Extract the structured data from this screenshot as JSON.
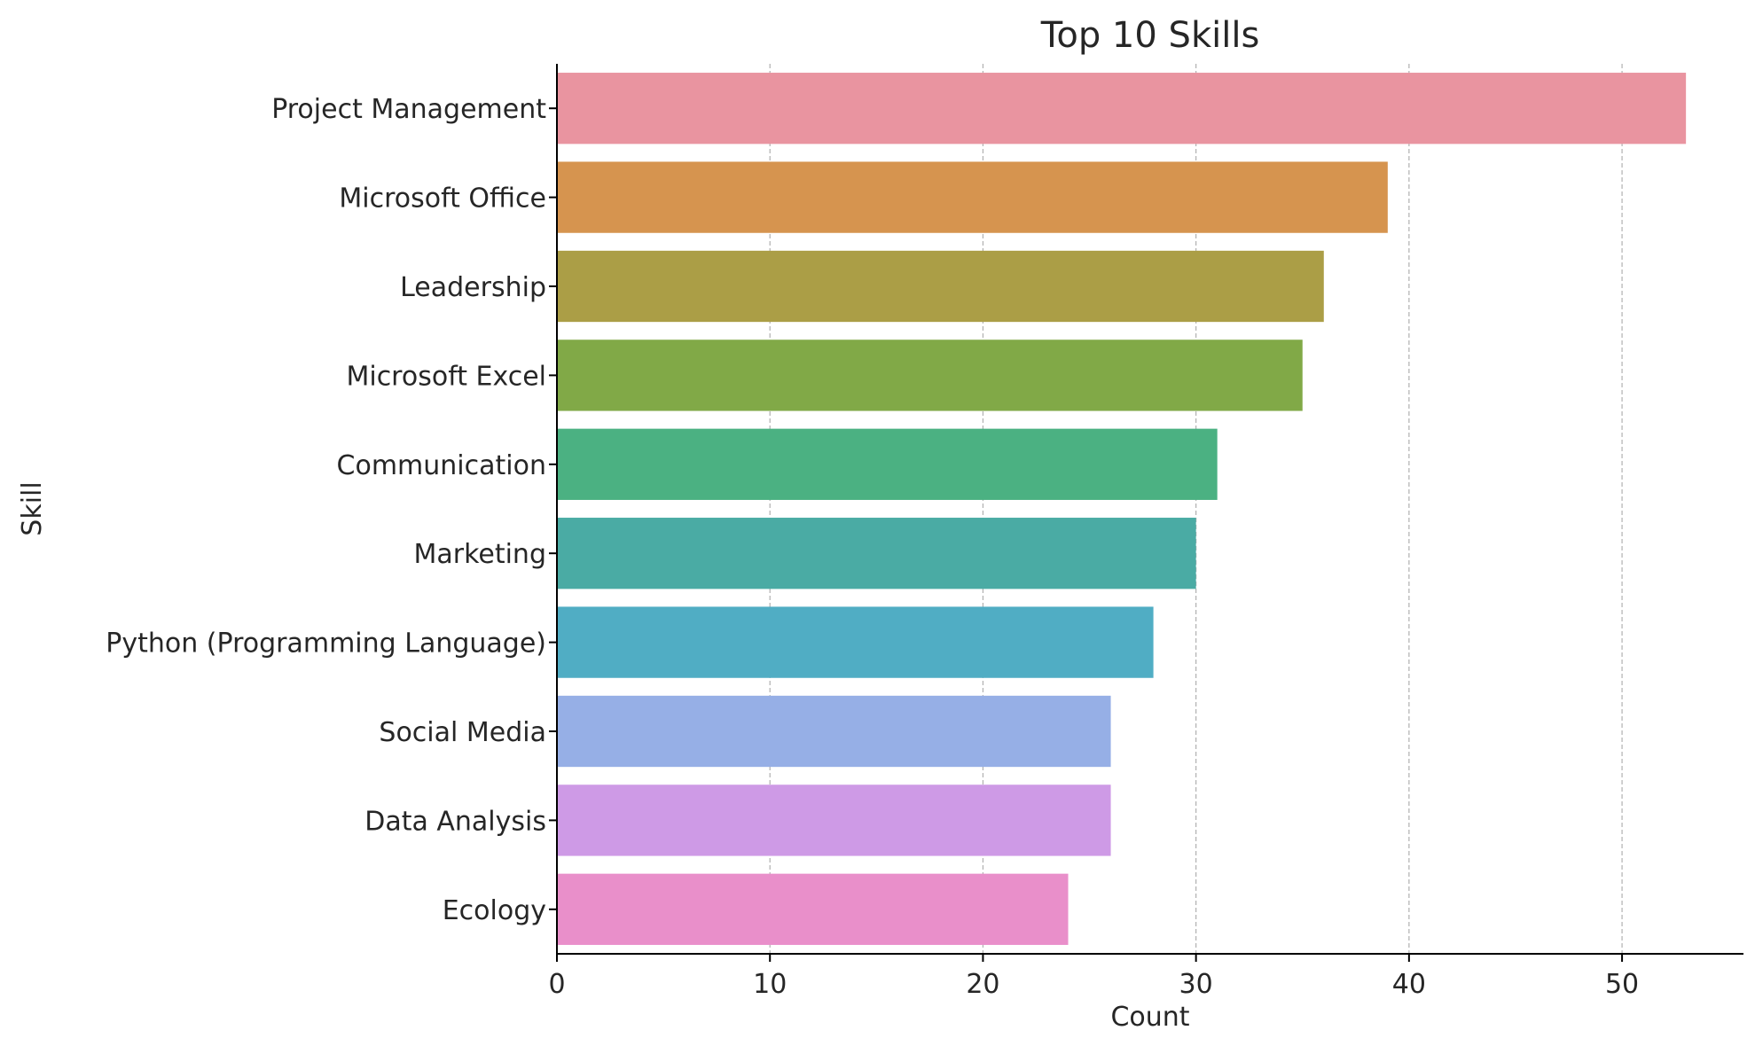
{
  "chart_data": {
    "type": "bar",
    "orientation": "horizontal",
    "title": "Top 10 Skills",
    "xlabel": "Count",
    "ylabel": "Skill",
    "categories": [
      "Project Management",
      "Microsoft Office",
      "Leadership",
      "Microsoft Excel",
      "Communication",
      "Marketing",
      "Python (Programming Language)",
      "Social Media",
      "Data Analysis",
      "Ecology"
    ],
    "values": [
      53,
      39,
      36,
      35,
      31,
      30,
      28,
      26,
      26,
      24
    ],
    "colors": [
      "#e994a0",
      "#d6944f",
      "#ab9e46",
      "#81a947",
      "#4bb182",
      "#4aaba4",
      "#50adc4",
      "#96afe6",
      "#ce9ae6",
      "#e98fca"
    ],
    "xlim": [
      0,
      55.7
    ],
    "xticks": [
      0,
      10,
      20,
      30,
      40,
      50
    ],
    "grid": {
      "x": true,
      "y": false
    },
    "legend": "none"
  }
}
